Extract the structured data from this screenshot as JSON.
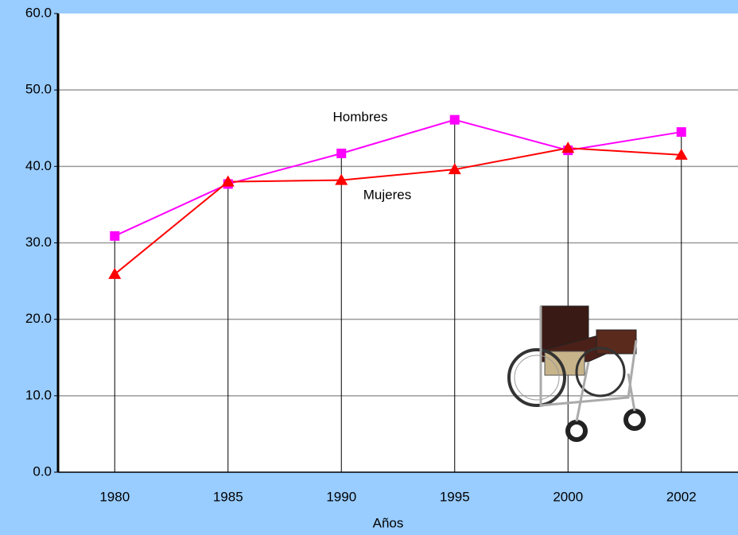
{
  "chart_data": {
    "type": "line",
    "x_label": "Años",
    "categories": [
      "1980",
      "1985",
      "1990",
      "1995",
      "2000",
      "2002"
    ],
    "series": [
      {
        "name": "Hombres",
        "color": "#ff00ff",
        "marker": "square",
        "values": [
          30.9,
          37.7,
          41.7,
          46.1,
          42.1,
          44.5
        ]
      },
      {
        "name": "Mujeres",
        "color": "#ff0000",
        "marker": "triangle",
        "values": [
          25.9,
          38.0,
          38.2,
          39.6,
          42.4,
          41.5
        ]
      }
    ],
    "ylim": [
      0,
      60
    ],
    "yticks": [
      {
        "value": 0,
        "label": "0.0"
      },
      {
        "value": 10,
        "label": "10.0"
      },
      {
        "value": 20,
        "label": "20.0"
      },
      {
        "value": 30,
        "label": "30.0"
      },
      {
        "value": 40,
        "label": "40.0"
      },
      {
        "value": 50,
        "label": "50.0"
      },
      {
        "value": 60,
        "label": "60.0"
      }
    ],
    "grid": true,
    "drop_lines": true
  }
}
